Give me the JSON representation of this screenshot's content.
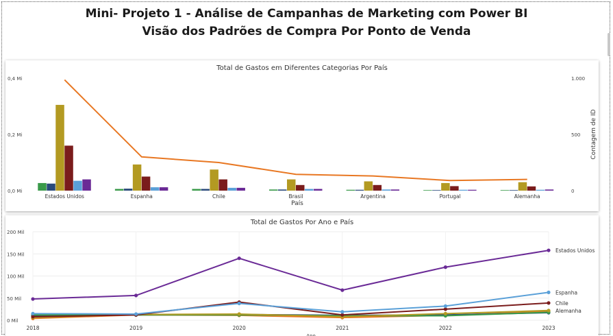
{
  "page": {
    "title_line1": "Mini- Projeto 1 - Análise de Campanhas de Marketing com Power BI",
    "title_line2": "Visão dos Padrões de Compra Por Ponto de Venda"
  },
  "chart_data": [
    {
      "type": "bar",
      "title": "Total de Gastos em Diferentes Categorias Por País",
      "xlabel": "País",
      "ylabel": "",
      "y2label": "Contagem de ID",
      "categories": [
        "Estados Unidos",
        "Espanha",
        "Chile",
        "Brasil",
        "Argentina",
        "Portugal",
        "Alemanha"
      ],
      "y_ticks": [
        "0,4 Mi",
        "0,2 Mi",
        "0,0 Mi"
      ],
      "y_tick_values": [
        0.4,
        0.2,
        0.0
      ],
      "y2_ticks": [
        "1.000",
        "500",
        "0"
      ],
      "y2_tick_values": [
        1000,
        500,
        0
      ],
      "ylim": [
        0,
        0.4
      ],
      "y2lim": [
        0,
        1000
      ],
      "colors": [
        "#3a9a4a",
        "#2a4a7a",
        "#b39a22",
        "#7a1c1c",
        "#5aa0d8",
        "#6a2a96"
      ],
      "series": [
        {
          "values": [
            0.027,
            0.006,
            0.006,
            0.004,
            0.003,
            0.002,
            0.002
          ]
        },
        {
          "values": [
            0.025,
            0.007,
            0.006,
            0.004,
            0.003,
            0.002,
            0.002
          ]
        },
        {
          "values": [
            0.305,
            0.093,
            0.075,
            0.04,
            0.033,
            0.027,
            0.03
          ]
        },
        {
          "values": [
            0.16,
            0.05,
            0.04,
            0.02,
            0.02,
            0.016,
            0.015
          ]
        },
        {
          "values": [
            0.035,
            0.012,
            0.01,
            0.006,
            0.004,
            0.003,
            0.003
          ]
        },
        {
          "values": [
            0.04,
            0.012,
            0.01,
            0.006,
            0.004,
            0.003,
            0.004
          ]
        }
      ],
      "line": {
        "axis": "y2",
        "color": "#e87722",
        "values": [
          985,
          300,
          250,
          145,
          130,
          90,
          100
        ]
      }
    },
    {
      "type": "line",
      "title": "Total de Gastos Por Ano e País",
      "xlabel": "Ano",
      "ylabel": "",
      "x": [
        "2018",
        "2019",
        "2020",
        "2021",
        "2022",
        "2023"
      ],
      "y_ticks": [
        "200 Mil",
        "150 Mil",
        "100 Mil",
        "50 Mil",
        "0 Mil"
      ],
      "y_tick_values": [
        200,
        150,
        100,
        50,
        0
      ],
      "ylim": [
        0,
        200
      ],
      "series": [
        {
          "name": "Estados Unidos",
          "color": "#6a2a96",
          "values": [
            48,
            56,
            140,
            68,
            120,
            158
          ]
        },
        {
          "name": "Espanha",
          "color": "#5aa0d8",
          "values": [
            15,
            14,
            38,
            19,
            32,
            63
          ]
        },
        {
          "name": "Chile",
          "color": "#7a1c1c",
          "values": [
            8,
            12,
            41,
            12,
            25,
            39
          ]
        },
        {
          "name": "Alemanha",
          "color": "#b39a22",
          "values": [
            6,
            13,
            14,
            8,
            15,
            22
          ]
        },
        {
          "name": "",
          "color": "#3a9a4a",
          "values": [
            12,
            12,
            12,
            10,
            10,
            18
          ]
        },
        {
          "name": "",
          "color": "#2a4a7a",
          "values": [
            10,
            12,
            13,
            11,
            12,
            17
          ]
        },
        {
          "name": "",
          "color": "#e87722",
          "values": [
            4,
            12,
            11,
            6,
            11,
            20
          ]
        }
      ]
    }
  ]
}
